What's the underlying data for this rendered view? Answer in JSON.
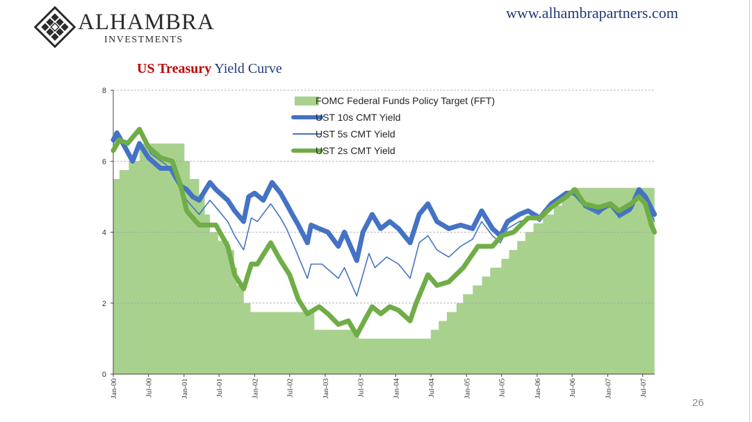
{
  "header": {
    "logo_name": "ALHAMBRA",
    "logo_sub": "INVESTMENTS",
    "website": "www.alhambrapartners.com"
  },
  "title": {
    "part1": "US Treasury",
    "part2": "Yield Curve"
  },
  "page_number": "26",
  "colors": {
    "fft": "#a9d18e",
    "ust10": "#4472c4",
    "ust5": "#4472c4",
    "ust2": "#70ad47",
    "title_red": "#c00000",
    "title_blue": "#1f3a7a"
  },
  "chart_data": {
    "type": "line",
    "title": "US Treasury Yield Curve",
    "ylim": [
      0,
      8
    ],
    "yticks": [
      0,
      2,
      4,
      6,
      8
    ],
    "xlim": [
      "2000-01-01",
      "2007-09-01"
    ],
    "xtick_labels": [
      {
        "date": "2000-01-01",
        "label": "Jan-00"
      },
      {
        "date": "2000-07-01",
        "label": "Jul-00"
      },
      {
        "date": "2001-01-01",
        "label": "Jan-01"
      },
      {
        "date": "2001-07-01",
        "label": "Jul-01"
      },
      {
        "date": "2002-01-01",
        "label": "Jan-02"
      },
      {
        "date": "2002-07-01",
        "label": "Jul-02"
      },
      {
        "date": "2003-01-01",
        "label": "Jan-03"
      },
      {
        "date": "2003-07-01",
        "label": "Jul-03"
      },
      {
        "date": "2004-01-01",
        "label": "Jan-04"
      },
      {
        "date": "2004-07-01",
        "label": "Jul-04"
      },
      {
        "date": "2005-01-01",
        "label": "Jan-05"
      },
      {
        "date": "2005-07-01",
        "label": "Jul-05"
      },
      {
        "date": "2006-01-01",
        "label": "Jan-06"
      },
      {
        "date": "2006-07-01",
        "label": "Jul-06"
      },
      {
        "date": "2007-01-01",
        "label": "Jan-07"
      },
      {
        "date": "2007-07-01",
        "label": "Jul-07"
      }
    ],
    "grid": "horizontal dashed",
    "legend_position": "top-center",
    "series": [
      {
        "name": "FOMC Federal Funds Policy Target (FFT)",
        "kind": "step-area",
        "points": [
          [
            "2000-01-01",
            5.5
          ],
          [
            "2000-02-02",
            5.75
          ],
          [
            "2000-03-21",
            6.0
          ],
          [
            "2000-05-16",
            6.5
          ],
          [
            "2001-01-03",
            6.0
          ],
          [
            "2001-01-31",
            5.5
          ],
          [
            "2001-03-20",
            5.0
          ],
          [
            "2001-04-18",
            4.5
          ],
          [
            "2001-05-15",
            4.0
          ],
          [
            "2001-06-27",
            3.75
          ],
          [
            "2001-08-21",
            3.5
          ],
          [
            "2001-09-17",
            3.0
          ],
          [
            "2001-10-02",
            2.5
          ],
          [
            "2001-11-06",
            2.0
          ],
          [
            "2001-12-11",
            1.75
          ],
          [
            "2002-11-06",
            1.25
          ],
          [
            "2003-06-25",
            1.0
          ],
          [
            "2004-06-30",
            1.25
          ],
          [
            "2004-08-10",
            1.5
          ],
          [
            "2004-09-21",
            1.75
          ],
          [
            "2004-11-10",
            2.0
          ],
          [
            "2004-12-14",
            2.25
          ],
          [
            "2005-02-02",
            2.5
          ],
          [
            "2005-03-22",
            2.75
          ],
          [
            "2005-05-03",
            3.0
          ],
          [
            "2005-06-30",
            3.25
          ],
          [
            "2005-08-09",
            3.5
          ],
          [
            "2005-09-20",
            3.75
          ],
          [
            "2005-11-01",
            4.0
          ],
          [
            "2005-12-13",
            4.25
          ],
          [
            "2006-01-31",
            4.5
          ],
          [
            "2006-03-28",
            4.75
          ],
          [
            "2006-05-10",
            5.0
          ],
          [
            "2006-06-29",
            5.25
          ],
          [
            "2007-08-31",
            5.25
          ]
        ]
      },
      {
        "name": "UST 10s CMT Yield",
        "kind": "line",
        "points": [
          [
            "2000-01-01",
            6.6
          ],
          [
            "2000-01-20",
            6.8
          ],
          [
            "2000-03-01",
            6.4
          ],
          [
            "2000-04-10",
            6.0
          ],
          [
            "2000-05-15",
            6.5
          ],
          [
            "2000-07-01",
            6.1
          ],
          [
            "2000-09-01",
            5.8
          ],
          [
            "2000-11-01",
            5.8
          ],
          [
            "2000-12-15",
            5.3
          ],
          [
            "2001-01-15",
            5.2
          ],
          [
            "2001-02-15",
            5.0
          ],
          [
            "2001-03-20",
            4.9
          ],
          [
            "2001-05-15",
            5.4
          ],
          [
            "2001-06-15",
            5.2
          ],
          [
            "2001-08-15",
            4.9
          ],
          [
            "2001-09-20",
            4.6
          ],
          [
            "2001-11-05",
            4.3
          ],
          [
            "2001-12-01",
            5.0
          ],
          [
            "2002-01-01",
            5.1
          ],
          [
            "2002-02-15",
            4.9
          ],
          [
            "2002-04-01",
            5.4
          ],
          [
            "2002-05-15",
            5.1
          ],
          [
            "2002-06-15",
            4.8
          ],
          [
            "2002-07-15",
            4.5
          ],
          [
            "2002-08-15",
            4.2
          ],
          [
            "2002-10-01",
            3.7
          ],
          [
            "2002-10-20",
            4.2
          ],
          [
            "2002-12-01",
            4.1
          ],
          [
            "2003-01-15",
            4.0
          ],
          [
            "2003-03-10",
            3.6
          ],
          [
            "2003-04-10",
            4.0
          ],
          [
            "2003-06-13",
            3.2
          ],
          [
            "2003-07-15",
            4.0
          ],
          [
            "2003-09-01",
            4.5
          ],
          [
            "2003-10-15",
            4.1
          ],
          [
            "2003-12-01",
            4.3
          ],
          [
            "2004-01-15",
            4.1
          ],
          [
            "2004-03-15",
            3.7
          ],
          [
            "2004-05-01",
            4.5
          ],
          [
            "2004-06-15",
            4.8
          ],
          [
            "2004-08-01",
            4.3
          ],
          [
            "2004-10-01",
            4.1
          ],
          [
            "2004-12-01",
            4.2
          ],
          [
            "2005-02-01",
            4.1
          ],
          [
            "2005-03-20",
            4.6
          ],
          [
            "2005-05-15",
            4.1
          ],
          [
            "2005-06-25",
            3.9
          ],
          [
            "2005-08-01",
            4.3
          ],
          [
            "2005-10-01",
            4.5
          ],
          [
            "2005-11-15",
            4.6
          ],
          [
            "2006-01-15",
            4.4
          ],
          [
            "2006-03-15",
            4.8
          ],
          [
            "2006-06-01",
            5.1
          ],
          [
            "2006-07-15",
            5.1
          ],
          [
            "2006-09-01",
            4.8
          ],
          [
            "2006-11-15",
            4.6
          ],
          [
            "2007-01-15",
            4.8
          ],
          [
            "2007-03-01",
            4.5
          ],
          [
            "2007-05-01",
            4.7
          ],
          [
            "2007-06-12",
            5.2
          ],
          [
            "2007-07-15",
            5.0
          ],
          [
            "2007-08-31",
            4.5
          ]
        ]
      },
      {
        "name": "UST 5s CMT Yield",
        "kind": "line",
        "points": [
          [
            "2000-01-01",
            6.5
          ],
          [
            "2000-01-25",
            6.7
          ],
          [
            "2000-03-15",
            6.5
          ],
          [
            "2000-05-15",
            6.8
          ],
          [
            "2000-07-15",
            6.2
          ],
          [
            "2000-10-01",
            5.9
          ],
          [
            "2000-12-15",
            5.2
          ],
          [
            "2001-01-15",
            4.9
          ],
          [
            "2001-03-20",
            4.5
          ],
          [
            "2001-05-15",
            4.9
          ],
          [
            "2001-06-15",
            4.7
          ],
          [
            "2001-08-15",
            4.3
          ],
          [
            "2001-09-20",
            3.9
          ],
          [
            "2001-11-05",
            3.5
          ],
          [
            "2001-12-15",
            4.4
          ],
          [
            "2002-01-15",
            4.3
          ],
          [
            "2002-03-25",
            4.8
          ],
          [
            "2002-05-15",
            4.4
          ],
          [
            "2002-06-15",
            4.1
          ],
          [
            "2002-08-01",
            3.5
          ],
          [
            "2002-10-01",
            2.7
          ],
          [
            "2002-10-20",
            3.1
          ],
          [
            "2002-12-15",
            3.1
          ],
          [
            "2003-03-10",
            2.7
          ],
          [
            "2003-04-10",
            3.0
          ],
          [
            "2003-06-13",
            2.2
          ],
          [
            "2003-08-15",
            3.4
          ],
          [
            "2003-09-15",
            3.0
          ],
          [
            "2003-11-15",
            3.3
          ],
          [
            "2004-01-15",
            3.1
          ],
          [
            "2004-03-15",
            2.7
          ],
          [
            "2004-05-01",
            3.7
          ],
          [
            "2004-06-15",
            3.9
          ],
          [
            "2004-08-01",
            3.5
          ],
          [
            "2004-10-01",
            3.3
          ],
          [
            "2004-12-01",
            3.6
          ],
          [
            "2005-02-01",
            3.8
          ],
          [
            "2005-03-20",
            4.3
          ],
          [
            "2005-05-15",
            3.9
          ],
          [
            "2005-06-25",
            3.7
          ],
          [
            "2005-08-01",
            4.1
          ],
          [
            "2005-10-01",
            4.3
          ],
          [
            "2005-12-15",
            4.4
          ],
          [
            "2006-01-15",
            4.3
          ],
          [
            "2006-03-15",
            4.7
          ],
          [
            "2006-06-01",
            5.0
          ],
          [
            "2006-07-15",
            5.1
          ],
          [
            "2006-09-01",
            4.7
          ],
          [
            "2006-11-15",
            4.5
          ],
          [
            "2007-01-15",
            4.8
          ],
          [
            "2007-03-01",
            4.4
          ],
          [
            "2007-05-01",
            4.6
          ],
          [
            "2007-06-12",
            5.1
          ],
          [
            "2007-07-15",
            4.9
          ],
          [
            "2007-08-31",
            4.3
          ]
        ]
      },
      {
        "name": "UST 2s CMT Yield",
        "kind": "line",
        "points": [
          [
            "2000-01-01",
            6.3
          ],
          [
            "2000-02-01",
            6.6
          ],
          [
            "2000-03-15",
            6.5
          ],
          [
            "2000-05-15",
            6.9
          ],
          [
            "2000-07-01",
            6.4
          ],
          [
            "2000-09-01",
            6.1
          ],
          [
            "2000-11-01",
            6.0
          ],
          [
            "2000-12-15",
            5.3
          ],
          [
            "2001-01-15",
            4.6
          ],
          [
            "2001-03-20",
            4.2
          ],
          [
            "2001-05-15",
            4.2
          ],
          [
            "2001-06-15",
            4.2
          ],
          [
            "2001-08-15",
            3.6
          ],
          [
            "2001-09-20",
            2.8
          ],
          [
            "2001-11-05",
            2.4
          ],
          [
            "2001-12-15",
            3.1
          ],
          [
            "2002-01-15",
            3.1
          ],
          [
            "2002-03-25",
            3.7
          ],
          [
            "2002-05-15",
            3.2
          ],
          [
            "2002-07-01",
            2.8
          ],
          [
            "2002-08-15",
            2.1
          ],
          [
            "2002-10-01",
            1.7
          ],
          [
            "2002-12-01",
            1.9
          ],
          [
            "2003-01-15",
            1.7
          ],
          [
            "2003-03-10",
            1.4
          ],
          [
            "2003-05-01",
            1.5
          ],
          [
            "2003-06-13",
            1.1
          ],
          [
            "2003-08-01",
            1.6
          ],
          [
            "2003-09-01",
            1.9
          ],
          [
            "2003-10-15",
            1.7
          ],
          [
            "2003-12-01",
            1.9
          ],
          [
            "2004-01-15",
            1.8
          ],
          [
            "2004-03-15",
            1.5
          ],
          [
            "2004-04-15",
            2.0
          ],
          [
            "2004-06-15",
            2.8
          ],
          [
            "2004-08-01",
            2.5
          ],
          [
            "2004-10-01",
            2.6
          ],
          [
            "2004-12-15",
            3.0
          ],
          [
            "2005-03-01",
            3.6
          ],
          [
            "2005-05-15",
            3.6
          ],
          [
            "2005-07-01",
            3.9
          ],
          [
            "2005-09-01",
            4.0
          ],
          [
            "2005-11-15",
            4.4
          ],
          [
            "2006-01-15",
            4.4
          ],
          [
            "2006-03-15",
            4.7
          ],
          [
            "2006-06-01",
            5.0
          ],
          [
            "2006-07-15",
            5.2
          ],
          [
            "2006-09-01",
            4.8
          ],
          [
            "2006-11-15",
            4.7
          ],
          [
            "2007-01-15",
            4.8
          ],
          [
            "2007-03-01",
            4.6
          ],
          [
            "2007-05-01",
            4.8
          ],
          [
            "2007-06-12",
            5.0
          ],
          [
            "2007-07-15",
            4.8
          ],
          [
            "2007-08-15",
            4.2
          ],
          [
            "2007-08-31",
            4.0
          ]
        ]
      }
    ]
  }
}
